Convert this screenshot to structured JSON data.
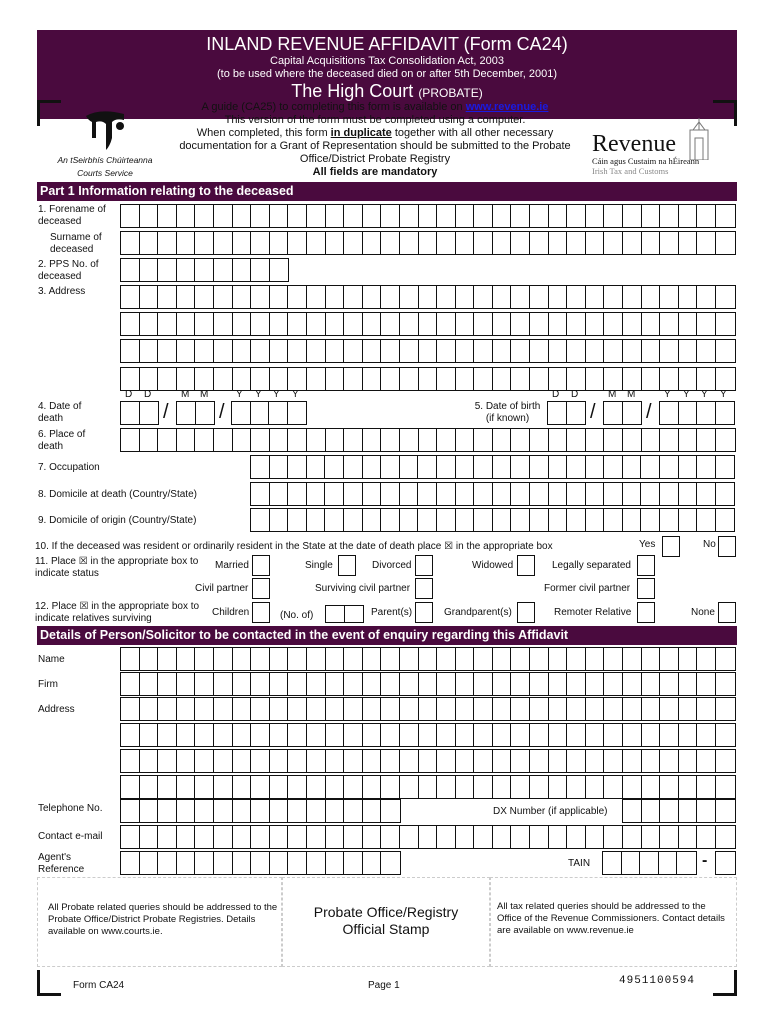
{
  "header": {
    "title": "INLAND REVENUE AFFIDAVIT (Form CA24)",
    "act": "Capital Acquisitions Tax Consolidation Act, 2003",
    "usage": "(to be used where the deceased died on or after 5th December, 2001)",
    "court": "The High Court",
    "court_sub": "(PROBATE)"
  },
  "guide": {
    "line1_pre": "A guide (CA25) to completing this form is available on ",
    "link": "www.revenue.ie",
    "line2": "This version of the form must be completed using a computer.",
    "line3_pre": "When completed, this form ",
    "line3_bold": "in duplicate",
    "line3_post": " together with all other necessary",
    "line4": "documentation for a Grant of Representation should be submitted to the Probate",
    "line5": "Office/District Probate Registry",
    "line6": "All fields are mandatory"
  },
  "logos": {
    "courts_irish": "An tSeirbhís Chúirteanna",
    "courts_en": "Courts Service",
    "revenue": "Revenue",
    "revenue_irish": "Cáin agus Custaim na hÉireann",
    "revenue_en": "Irish Tax and Customs"
  },
  "part1": {
    "title": "Part 1 Information relating to the deceased",
    "forename": "1. Forename of deceased",
    "surname": "Surname of deceased",
    "pps": "2. PPS No. of deceased",
    "address": "3. Address",
    "dod": "4. Date of death",
    "dob": "5. Date of birth (if known)",
    "date_labels": {
      "d": "D",
      "m": "M",
      "y": "Y"
    },
    "slash": "/",
    "place": "6. Place of death",
    "occupation": "7. Occupation",
    "dom_death": "8. Domicile at death (Country/State)",
    "dom_origin": "9. Domicile of origin (Country/State)",
    "q10": "10. If the deceased was resident or ordinarily resident in the State at the date of death place ☒ in the appropriate box",
    "yes": "Yes",
    "no": "No",
    "q11": "11. Place ☒ in the appropriate box to indicate status",
    "status": {
      "married": "Married",
      "single": "Single",
      "divorced": "Divorced",
      "widowed": "Widowed",
      "legally_separated": "Legally separated",
      "civil_partner": "Civil partner",
      "surviving_civil_partner": "Surviving civil partner",
      "former_civil_partner": "Former civil partner"
    },
    "q12": "12. Place ☒ in the appropriate box to indicate relatives surviving",
    "relatives": {
      "children": "Children",
      "no_of": "(No. of)",
      "parents": "Parent(s)",
      "grandparents": "Grandparent(s)",
      "remoter": "Remoter Relative",
      "none": "None"
    }
  },
  "contact": {
    "title": "Details of Person/Solicitor to be contacted in the event of enquiry regarding this Affidavit",
    "name": "Name",
    "firm": "Firm",
    "address": "Address",
    "telephone": "Telephone No.",
    "dx": "DX Number (if applicable)",
    "email": "Contact e-mail",
    "agent_ref": "Agent's Reference",
    "tain": "TAIN",
    "dash": "-"
  },
  "footer_boxes": {
    "left": "All Probate related queries should be addressed to the Probate Office/District Probate Registries. Details available on www.courts.ie.",
    "center": "Probate Office/Registry Official Stamp",
    "right": "All tax related queries should be addressed to the Office of the Revenue Commissioners. Contact details are available on www.revenue.ie"
  },
  "footer": {
    "form": "Form CA24",
    "page": "Page 1",
    "code": "4951100594"
  },
  "colors": {
    "section_bar": "#4a0a3e",
    "link": "#1a1ae0"
  }
}
